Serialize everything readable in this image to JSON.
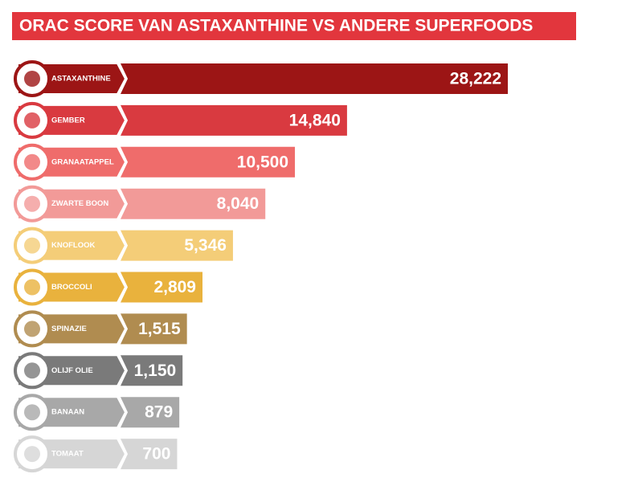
{
  "chart_data": {
    "type": "bar",
    "title": "ORAC SCORE VAN ASTAXANTHINE VS ANDERE SUPERFOODS",
    "categories": [
      "ASTAXANTHINE",
      "GEMBER",
      "GRANAATAPPEL",
      "ZWARTE BOON",
      "KNOFLOOK",
      "BROCCOLI",
      "SPINAZIE",
      "OLIJF OLIE",
      "BANAAN",
      "TOMAAT"
    ],
    "values": [
      28222,
      14840,
      10500,
      8040,
      5346,
      2809,
      1515,
      1150,
      879,
      700
    ],
    "value_labels": [
      "28,222",
      "14,840",
      "10,500",
      "8,040",
      "5,346",
      "2,809",
      "1,515",
      "1,150",
      "879",
      "700"
    ],
    "colors": [
      "#9c1515",
      "#d93a40",
      "#ef6c6b",
      "#f29a98",
      "#f4cd78",
      "#e9b23d",
      "#b08c50",
      "#7a7a7a",
      "#a8a8a8",
      "#d6d6d6"
    ]
  }
}
